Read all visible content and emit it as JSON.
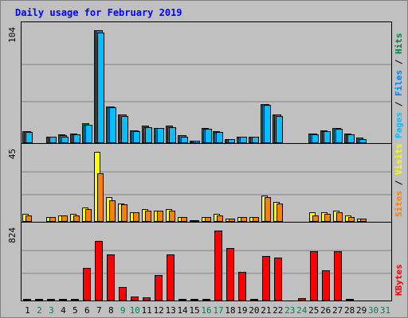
{
  "title": "Daily usage for February 2019",
  "chart_data": {
    "type": "bar",
    "title": "Daily usage for February 2019",
    "days": [
      "1",
      "2",
      "3",
      "4",
      "5",
      "6",
      "7",
      "8",
      "9",
      "10",
      "11",
      "12",
      "13",
      "14",
      "15",
      "16",
      "17",
      "18",
      "19",
      "20",
      "21",
      "22",
      "23",
      "24",
      "25",
      "26",
      "27",
      "28",
      "29",
      "30",
      "31"
    ],
    "weekend_days": [
      "2",
      "3",
      "9",
      "10",
      "16",
      "17",
      "23",
      "24",
      "30",
      "31"
    ],
    "panels": [
      {
        "id": "hits",
        "ymax_label": "104",
        "ymax": 104,
        "legend": [
          "Pages",
          "Files",
          "Hits"
        ],
        "legend_colors": [
          "#00C0FF",
          "#0080FF",
          "#008040"
        ],
        "series": [
          {
            "name": "Hits",
            "color": "#008040",
            "values": [
              11,
              0,
              6,
              8,
              9,
              18,
              104,
              34,
              26,
              12,
              16,
              14,
              16,
              7,
              2,
              14,
              11,
              4,
              6,
              6,
              36,
              26,
              0,
              0,
              9,
              12,
              14,
              9,
              5,
              0,
              0
            ]
          },
          {
            "name": "Files",
            "color": "#0080FF",
            "values": [
              11,
              0,
              6,
              7,
              8,
              17,
              104,
              34,
              26,
              12,
              15,
              14,
              15,
              7,
              2,
              13,
              10,
              4,
              6,
              6,
              36,
              26,
              0,
              0,
              9,
              11,
              14,
              8,
              4,
              0,
              0
            ]
          },
          {
            "name": "Pages",
            "color": "#00C0FF",
            "values": [
              10,
              0,
              6,
              6,
              8,
              17,
              102,
              33,
              25,
              11,
              15,
              14,
              15,
              6,
              2,
              13,
              10,
              4,
              6,
              6,
              35,
              25,
              0,
              0,
              8,
              11,
              13,
              8,
              4,
              0,
              0
            ]
          }
        ]
      },
      {
        "id": "visits",
        "ymax_label": "45",
        "ymax": 45,
        "legend": [
          "Sites",
          "Visits"
        ],
        "legend_colors": [
          "#FF8000",
          "#FFFF00"
        ],
        "series": [
          {
            "name": "Visits",
            "color": "#FFFF00",
            "values": [
              5,
              0,
              3,
              4,
              5,
              9,
              45,
              16,
              12,
              6,
              8,
              7,
              8,
              3,
              1,
              3,
              5,
              2,
              3,
              3,
              17,
              13,
              0,
              0,
              6,
              6,
              7,
              4,
              2,
              0,
              0
            ]
          },
          {
            "name": "Sites",
            "color": "#FF8000",
            "values": [
              4,
              0,
              3,
              4,
              4,
              8,
              31,
              14,
              11,
              6,
              7,
              7,
              7,
              3,
              1,
              3,
              4,
              2,
              3,
              3,
              16,
              12,
              0,
              0,
              4,
              5,
              6,
              3,
              2,
              0,
              0
            ]
          }
        ]
      },
      {
        "id": "kbytes",
        "ymax_label": "824",
        "ymax": 824,
        "legend": [
          "KBytes"
        ],
        "legend_colors": [
          "#FF0000"
        ],
        "series": [
          {
            "name": "KBytes",
            "color": "#FF0000",
            "values": [
              10,
              10,
              10,
              10,
              10,
              380,
              700,
              540,
              160,
              50,
              40,
              300,
              540,
              10,
              10,
              20,
              824,
              620,
              340,
              10,
              520,
              510,
              0,
              25,
              580,
              355,
              580,
              10,
              0,
              0,
              0
            ]
          }
        ]
      }
    ]
  }
}
